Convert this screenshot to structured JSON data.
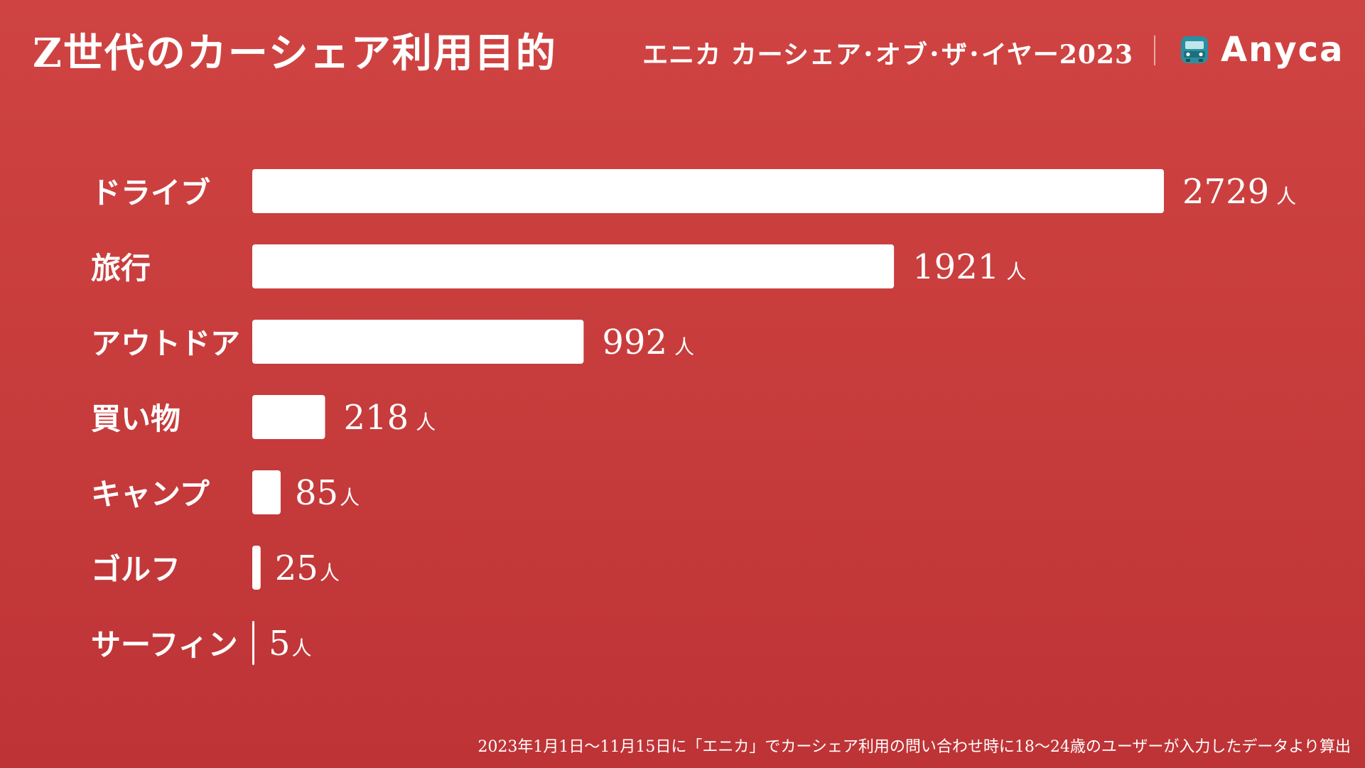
{
  "header": {
    "title": "Z世代のカーシェア利用目的",
    "event": "エニカ カーシェア･オブ･ザ･イヤー2023",
    "logo_text": "Anyca",
    "logo_icon": "car-front-icon",
    "colors": {
      "background": "#c63b3b",
      "bar": "#ffffff",
      "logo_icon": "#2a8fa0"
    }
  },
  "chart_data": {
    "type": "bar",
    "orientation": "horizontal",
    "categories": [
      "ドライブ",
      "旅行",
      "アウトドア",
      "買い物",
      "キャンプ",
      "ゴルフ",
      "サーフィン"
    ],
    "values": [
      2729,
      1921,
      992,
      218,
      85,
      25,
      5
    ],
    "unit": "人",
    "title": "Z世代のカーシェア利用目的",
    "xlabel": "",
    "ylabel": "",
    "xlim": [
      0,
      2729
    ],
    "grid": false
  },
  "footnote": "2023年1月1日〜11月15日に「エニカ」でカーシェア利用の問い合わせ時に18〜24歳のユーザーが入力したデータより算出"
}
